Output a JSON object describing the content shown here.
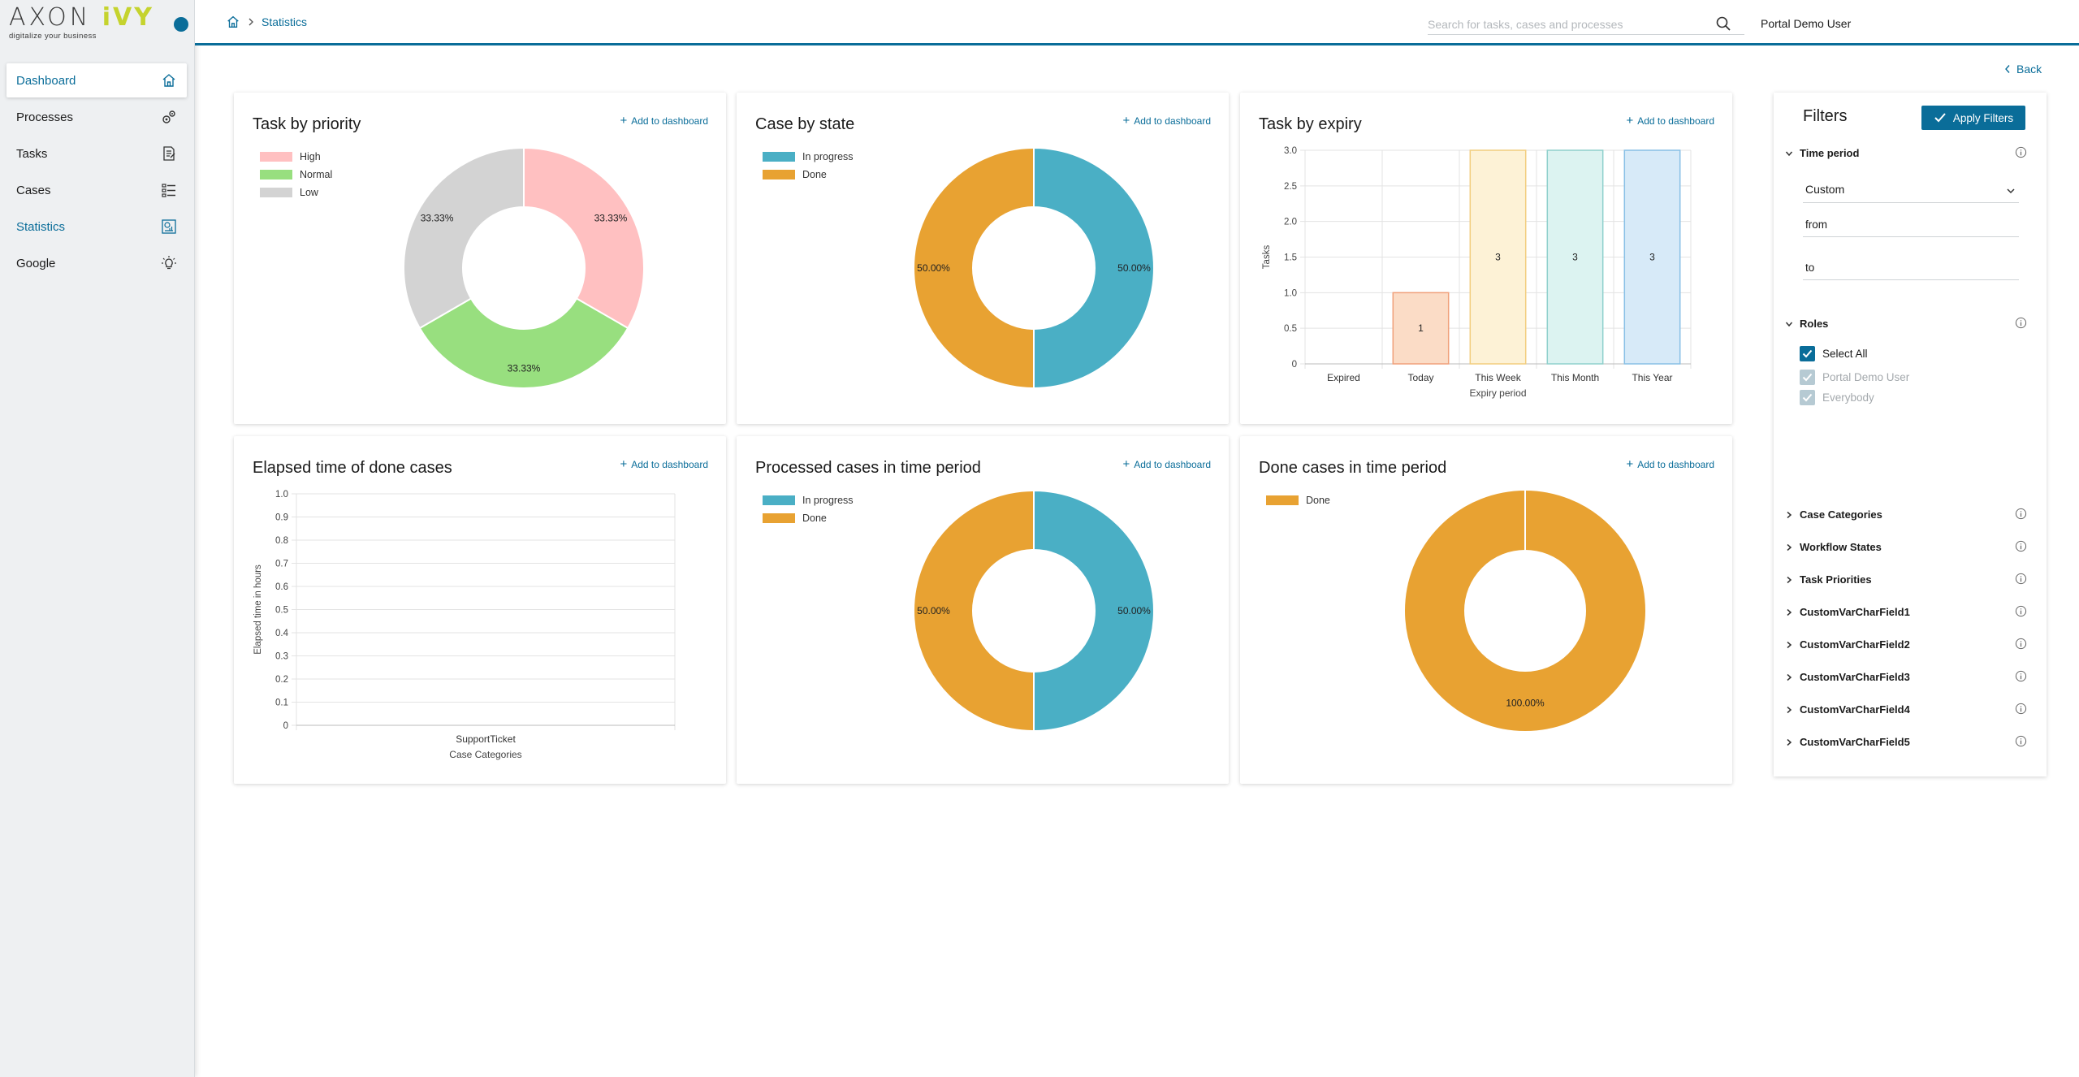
{
  "logo": {
    "brand_a": "AXON",
    "brand_b": "iVY",
    "tagline": "digitalize your business"
  },
  "sidebar": {
    "items": [
      {
        "label": "Dashboard",
        "icon": "home-icon"
      },
      {
        "label": "Processes",
        "icon": "gears-icon"
      },
      {
        "label": "Tasks",
        "icon": "task-list-icon"
      },
      {
        "label": "Cases",
        "icon": "case-list-icon"
      },
      {
        "label": "Statistics",
        "icon": "statistics-icon"
      },
      {
        "label": "Google",
        "icon": "lightbulb-icon"
      }
    ]
  },
  "header": {
    "breadcrumb_current": "Statistics",
    "search_placeholder": "Search for tasks, cases and processes",
    "user": "Portal Demo User"
  },
  "back_label": "Back",
  "add_to_dashboard": "Add to dashboard",
  "cards": [
    {
      "title": "Task by priority"
    },
    {
      "title": "Case by state"
    },
    {
      "title": "Task by expiry"
    },
    {
      "title": "Elapsed time of done cases"
    },
    {
      "title": "Processed cases in time period"
    },
    {
      "title": "Done cases in time period"
    }
  ],
  "colors": {
    "accent": "#0a6d99",
    "high": "#ffc0c1",
    "normal": "#98df7f",
    "low": "#d3d3d3",
    "in_progress": "#4aafc5",
    "done": "#e8a232"
  },
  "chart_data": [
    {
      "type": "pie",
      "title": "Task by priority",
      "categories": [
        "High",
        "Normal",
        "Low"
      ],
      "values": [
        33.33,
        33.33,
        33.33
      ],
      "value_labels": [
        "33.33%",
        "33.33%",
        "33.33%"
      ],
      "colors": [
        "#ffc0c1",
        "#98df7f",
        "#d3d3d3"
      ],
      "legend": "top-left"
    },
    {
      "type": "pie",
      "title": "Case by state",
      "categories": [
        "In progress",
        "Done"
      ],
      "values": [
        50,
        50
      ],
      "value_labels": [
        "50.00%",
        "50.00%"
      ],
      "colors": [
        "#4aafc5",
        "#e8a232"
      ],
      "legend": "top-left"
    },
    {
      "type": "bar",
      "title": "Task by expiry",
      "categories": [
        "Expired",
        "Today",
        "This Week",
        "This Month",
        "This Year"
      ],
      "values": [
        0,
        1,
        3,
        3,
        3
      ],
      "value_labels": [
        "",
        "1",
        "3",
        "3",
        "3"
      ],
      "colors": [
        "#f7c6b4",
        "#fbdcc6",
        "#fdf2d6",
        "#dcf3f1",
        "#d7eaf8"
      ],
      "borders": [
        "#f0a07a",
        "#f0a07a",
        "#f2cd7e",
        "#8fd0cc",
        "#88c0e6"
      ],
      "xlabel": "Expiry period",
      "ylabel": "Tasks",
      "ylim": [
        0,
        3
      ],
      "yticks": [
        "0",
        "0.5",
        "1.0",
        "1.5",
        "2.0",
        "2.5",
        "3.0"
      ],
      "grid": true
    },
    {
      "type": "bar",
      "title": "Elapsed time of done cases",
      "categories": [
        "SupportTicket"
      ],
      "values": [
        0
      ],
      "xlabel": "Case Categories",
      "ylabel": "Elapsed time in hours",
      "ylim": [
        0,
        1
      ],
      "yticks": [
        "0",
        "0.1",
        "0.2",
        "0.3",
        "0.4",
        "0.5",
        "0.6",
        "0.7",
        "0.8",
        "0.9",
        "1.0"
      ],
      "grid": true
    },
    {
      "type": "pie",
      "title": "Processed cases in time period",
      "categories": [
        "In progress",
        "Done"
      ],
      "values": [
        50,
        50
      ],
      "value_labels": [
        "50.00%",
        "50.00%"
      ],
      "colors": [
        "#4aafc5",
        "#e8a232"
      ],
      "legend": "top-left"
    },
    {
      "type": "pie",
      "title": "Done cases in time period",
      "categories": [
        "Done"
      ],
      "values": [
        100
      ],
      "value_labels": [
        "100.00%"
      ],
      "colors": [
        "#e8a232"
      ],
      "legend": "top-left"
    }
  ],
  "filters": {
    "title": "Filters",
    "apply_label": "Apply Filters",
    "time_period": {
      "label": "Time period",
      "selected": "Custom",
      "from_placeholder": "from",
      "to_placeholder": "to"
    },
    "roles": {
      "label": "Roles",
      "options": [
        {
          "label": "Select All",
          "checked": true,
          "disabled": false
        },
        {
          "label": "Portal Demo User",
          "checked": true,
          "disabled": true
        },
        {
          "label": "Everybody",
          "checked": true,
          "disabled": true
        }
      ]
    },
    "sections": [
      "Case Categories",
      "Workflow States",
      "Task Priorities",
      "CustomVarCharField1",
      "CustomVarCharField2",
      "CustomVarCharField3",
      "CustomVarCharField4",
      "CustomVarCharField5"
    ]
  }
}
